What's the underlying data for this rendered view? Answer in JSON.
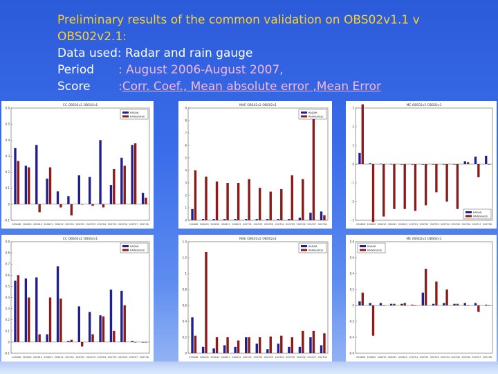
{
  "slide": {
    "title_line1": "Preliminary results of the common validation on OBS02v1.1 v",
    "title_line2": "OBS02v2.1:",
    "data_used_label": "Data used",
    "data_used_value": ": Radar and rain gauge",
    "period_label": "Period",
    "period_value": ": August 2006-August 2007,",
    "score_label": "Score",
    "score_sep": ": ",
    "score_value": "Corr. Coef., Mean absolute error ,Mean Error",
    "colors": {
      "title": "#f6d23a",
      "accent": "#f6b7e0",
      "radar": "#1f1f8f",
      "raingauge": "#8b1a1a"
    }
  },
  "chart_data": [
    {
      "type": "bar",
      "title": "CC OBS02v2 OBS02v1",
      "legend": [
        "RADAR",
        "RAINGAUGE"
      ],
      "legend_pos": "top-right",
      "ylim": [
        -0.1,
        0.6
      ],
      "yticks": [
        -0.1,
        0,
        0.1,
        0.2,
        0.3,
        0.4,
        0.5,
        0.6
      ],
      "x_tick_labels": [
        "200608",
        "200609",
        "200610",
        "200611",
        "200612",
        "200701",
        "200702",
        "200703",
        "200704",
        "200705",
        "200706",
        "200707",
        "200708"
      ],
      "series": [
        {
          "name": "RADAR",
          "values": [
            0.35,
            0.24,
            0.37,
            0.16,
            0.08,
            0.05,
            0.18,
            0.17,
            0.4,
            0.12,
            0.29,
            0.37,
            0.07
          ]
        },
        {
          "name": "RAINGAUGE",
          "values": [
            0.27,
            0.23,
            -0.05,
            0.23,
            -0.02,
            -0.07,
            0.0,
            -0.01,
            -0.02,
            0.22,
            0.24,
            0.38,
            0.04
          ]
        }
      ]
    },
    {
      "type": "bar",
      "title": "MAE OBS02v2 OBS02v1",
      "legend": [
        "RADAR",
        "RAINGAUGE"
      ],
      "legend_pos": "top-right",
      "ylim": [
        0,
        9
      ],
      "yticks": [
        0,
        1,
        2,
        3,
        4,
        5,
        6,
        7,
        8,
        9
      ],
      "x_tick_labels": [
        "200608",
        "200609",
        "200610",
        "200611",
        "200612",
        "200701",
        "200702",
        "200703",
        "200704",
        "200705",
        "200706",
        "200707",
        "200708"
      ],
      "series": [
        {
          "name": "RADAR",
          "values": [
            0.9,
            0.1,
            0.1,
            0.1,
            0.1,
            0.1,
            0.1,
            0.1,
            0.1,
            0.1,
            0.2,
            0.6,
            0.7
          ]
        },
        {
          "name": "RAINGAUGE",
          "values": [
            4.0,
            3.5,
            3.1,
            3.0,
            3.0,
            3.3,
            2.6,
            2.3,
            2.5,
            3.6,
            3.3,
            8.2,
            0.4
          ]
        }
      ]
    },
    {
      "type": "bar",
      "title": "ME OBS02v2 OBS02v1",
      "legend": [
        "RADAR",
        "RAINGAUGE"
      ],
      "legend_pos": "bottom-right",
      "ylim": [
        -3,
        3
      ],
      "yticks": [
        -3,
        -2,
        -1,
        0,
        1,
        2,
        3
      ],
      "x_tick_labels": [
        "200608",
        "200609",
        "200610",
        "200611",
        "200612",
        "200701",
        "200702",
        "200703",
        "200704",
        "200705",
        "200706",
        "200707",
        "200708"
      ],
      "series": [
        {
          "name": "RADAR",
          "values": [
            0.6,
            0.05,
            0.02,
            0.01,
            0.0,
            0.0,
            0.0,
            0.0,
            0.0,
            0.0,
            0.15,
            0.4,
            0.45
          ]
        },
        {
          "name": "RAINGAUGE",
          "values": [
            3.2,
            -3.1,
            -2.8,
            -2.4,
            -2.4,
            -2.5,
            -2.2,
            -1.5,
            -2.0,
            -2.4,
            0.1,
            -0.7,
            0.0
          ]
        }
      ]
    },
    {
      "type": "bar",
      "title": "CC OBS02v2 OBS02v1",
      "legend": [
        "RADAR",
        "RAINGAUGE"
      ],
      "legend_pos": "top-right",
      "ylim": [
        -0.1,
        0.9
      ],
      "yticks": [
        -0.1,
        0,
        0.1,
        0.2,
        0.3,
        0.4,
        0.5,
        0.6,
        0.7,
        0.8,
        0.9
      ],
      "x_tick_labels": [
        "200608",
        "200609",
        "200610",
        "200611",
        "200612",
        "200701",
        "200702",
        "200703",
        "200704",
        "200705",
        "200706",
        "200707",
        "200708"
      ],
      "series": [
        {
          "name": "RADAR",
          "values": [
            0.55,
            0.57,
            0.58,
            0.07,
            0.68,
            0.01,
            0.32,
            0.27,
            0.24,
            0.47,
            0.46,
            0.01,
            0.0
          ]
        },
        {
          "name": "RAINGAUGE",
          "values": [
            0.6,
            0.4,
            0.07,
            0.4,
            0.39,
            0.02,
            -0.04,
            0.07,
            0.23,
            0.1,
            0.33,
            0.0,
            0.0
          ]
        }
      ]
    },
    {
      "type": "bar",
      "title": "MAE OBS02v2 OBS02v1",
      "legend": [
        "RADAR",
        "RAINGAUGE"
      ],
      "legend_pos": "top-right",
      "ylim": [
        0,
        1.4
      ],
      "yticks": [
        0,
        0.2,
        0.4,
        0.6,
        0.8,
        1.0,
        1.2,
        1.4
      ],
      "x_tick_labels": [
        "200608",
        "200609",
        "200610",
        "200611",
        "200612",
        "200701",
        "200702",
        "200703",
        "200704",
        "200705",
        "200706",
        "200707",
        "200708"
      ],
      "series": [
        {
          "name": "RADAR",
          "values": [
            0.45,
            0.08,
            0.06,
            0.1,
            0.08,
            0.2,
            0.12,
            0.05,
            0.12,
            0.08,
            0.08,
            0.2,
            0.1
          ]
        },
        {
          "name": "RAINGAUGE",
          "values": [
            0.22,
            1.27,
            0.2,
            0.2,
            0.16,
            0.2,
            0.2,
            0.21,
            0.22,
            0.2,
            0.28,
            0.28,
            0.25
          ]
        }
      ]
    },
    {
      "type": "bar",
      "title": "ME OBS02v2 OBS02v1",
      "legend": [
        "RADAR",
        "RAINGAUGE"
      ],
      "legend_pos": "top-left",
      "ylim": [
        -0.6,
        0.8
      ],
      "yticks": [
        -0.6,
        -0.4,
        -0.2,
        0,
        0.2,
        0.4,
        0.6,
        0.8
      ],
      "x_tick_labels": [
        "200608",
        "200609",
        "200610",
        "200611",
        "200612",
        "200701",
        "200702",
        "200703",
        "200704",
        "200705",
        "200706",
        "200707",
        "200708"
      ],
      "series": [
        {
          "name": "RADAR",
          "values": [
            0.05,
            0.03,
            0.03,
            0.02,
            0.02,
            0.01,
            0.16,
            0.02,
            0.03,
            0.02,
            0.03,
            0.03,
            0.01
          ]
        },
        {
          "name": "RAINGAUGE",
          "values": [
            0.16,
            -0.38,
            0.0,
            0.02,
            0.03,
            0.0,
            0.46,
            0.3,
            0.2,
            0.02,
            0.0,
            -0.08,
            0.0
          ]
        }
      ]
    }
  ]
}
